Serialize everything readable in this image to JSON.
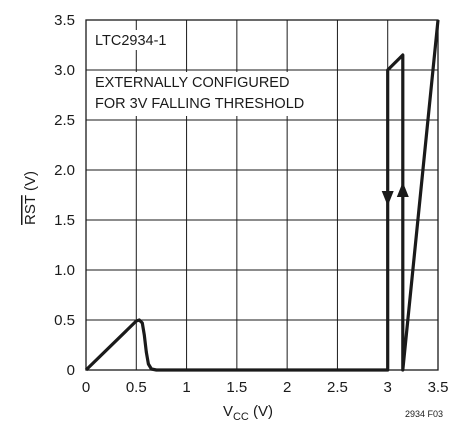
{
  "chart_data": {
    "type": "line",
    "title": "",
    "xlabel": {
      "main": "V",
      "sub": "CC",
      "unit": " (V)"
    },
    "ylabel": {
      "main": "RST",
      "unit": " (V)",
      "overline": true
    },
    "xlim": [
      0,
      3.5
    ],
    "ylim": [
      0,
      3.5
    ],
    "grid": true,
    "x_ticks": [
      "0",
      "0.5",
      "1",
      "1.5",
      "2",
      "2.5",
      "3",
      "3.5"
    ],
    "y_ticks": [
      "0",
      "0.5",
      "1.0",
      "1.5",
      "2.0",
      "2.5",
      "3.0",
      "3.5"
    ],
    "series": [
      {
        "x": [
          0,
          0.5,
          0.53,
          0.56,
          0.58,
          0.6,
          0.62,
          0.65,
          0.7,
          3.0,
          3.0,
          3.0,
          3.15,
          3.15,
          3.15,
          3.5
        ],
        "y": [
          0,
          0.49,
          0.5,
          0.47,
          0.35,
          0.18,
          0.06,
          0.01,
          0,
          0,
          1.7,
          3.0,
          3.15,
          1.7,
          0,
          3.5
        ]
      }
    ],
    "arrows": [
      {
        "x": 3.0,
        "y": 1.72,
        "direction": "down"
      },
      {
        "x": 3.15,
        "y": 1.8,
        "direction": "up"
      }
    ],
    "annotations": [
      "LTC2934-1",
      "EXTERNALLY CONFIGURED",
      "FOR 3V FALLING THRESHOLD"
    ],
    "figure_id": "2934 F03"
  }
}
